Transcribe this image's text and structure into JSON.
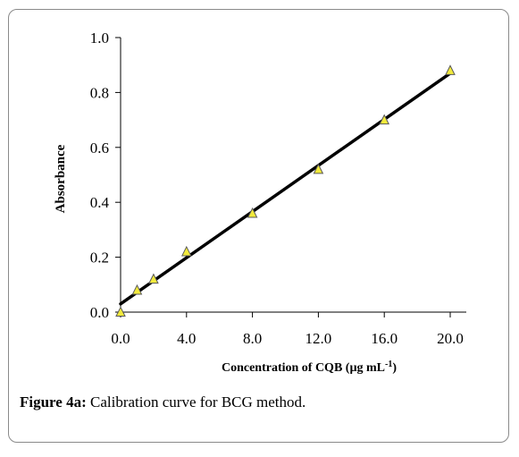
{
  "figure": {
    "caption_label": "Figure 4a:",
    "caption_text": " Calibration curve for BCG method."
  },
  "chart_data": {
    "type": "scatter",
    "xlabel": "Concentration of  CQB (µg mL",
    "xlabel_superscript": "-1",
    "xlabel_suffix": ")",
    "ylabel": "Absorbance",
    "xlim": [
      0,
      20
    ],
    "ylim": [
      0,
      1.0
    ],
    "x_ticks": [
      0,
      4,
      8,
      12,
      16,
      20
    ],
    "x_tick_labels": [
      "0.0",
      "4.0",
      "8.0",
      "12.0",
      "16.0",
      "20.0"
    ],
    "y_ticks": [
      0,
      0.2,
      0.4,
      0.6,
      0.8,
      1.0
    ],
    "y_tick_labels": [
      "0.0",
      "0.2",
      "0.4",
      "0.6",
      "0.8",
      "1.0"
    ],
    "grid": false,
    "series": [
      {
        "marker": "triangle",
        "marker_color": "#f2ea3c",
        "points": [
          {
            "x": 0,
            "y": 0.0
          },
          {
            "x": 1,
            "y": 0.08
          },
          {
            "x": 2,
            "y": 0.12
          },
          {
            "x": 4,
            "y": 0.22
          },
          {
            "x": 8,
            "y": 0.36
          },
          {
            "x": 12,
            "y": 0.52
          },
          {
            "x": 16,
            "y": 0.7
          },
          {
            "x": 20,
            "y": 0.88
          }
        ]
      }
    ],
    "fit_line": {
      "x": [
        0,
        20
      ],
      "y": [
        0.03,
        0.87
      ],
      "color": "#000000"
    }
  }
}
